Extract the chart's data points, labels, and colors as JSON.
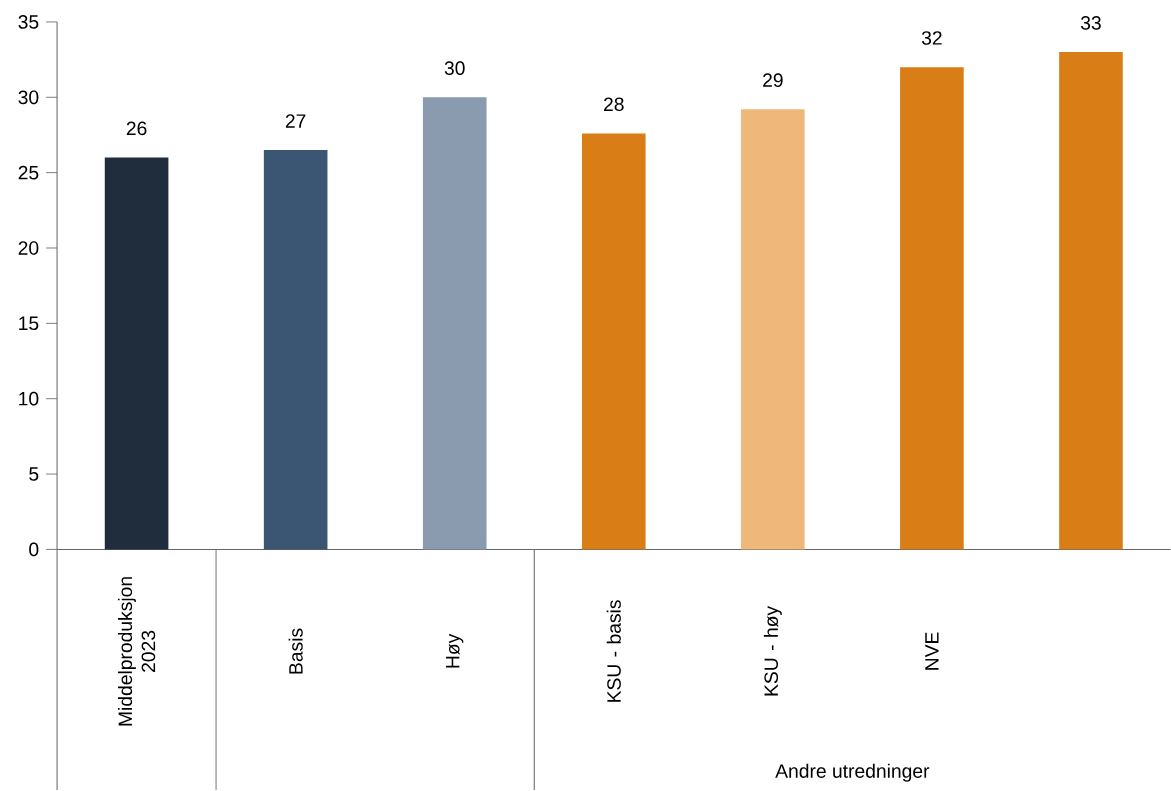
{
  "chart_data": {
    "type": "bar",
    "categories": [
      "Middelproduksjon 2023",
      "Basis",
      "Høy",
      "KSU - basis",
      "KSU - høy",
      "NVE",
      null
    ],
    "values": [
      26.0,
      26.5,
      30.0,
      27.6,
      29.2,
      32.0,
      33.0
    ],
    "value_labels": [
      "26",
      "27",
      "30",
      "28",
      "29",
      "32",
      "33"
    ],
    "colors": [
      "#1f2d3d",
      "#3a5673",
      "#8a9bb0",
      "#d97e16",
      "#efb87a",
      "#d97e16",
      "#d97e16"
    ],
    "ylim": [
      0,
      35
    ],
    "yticks": [
      0,
      5,
      10,
      15,
      20,
      25,
      30,
      35
    ],
    "annotations": [
      "Andre utredninger"
    ],
    "grid": false
  }
}
